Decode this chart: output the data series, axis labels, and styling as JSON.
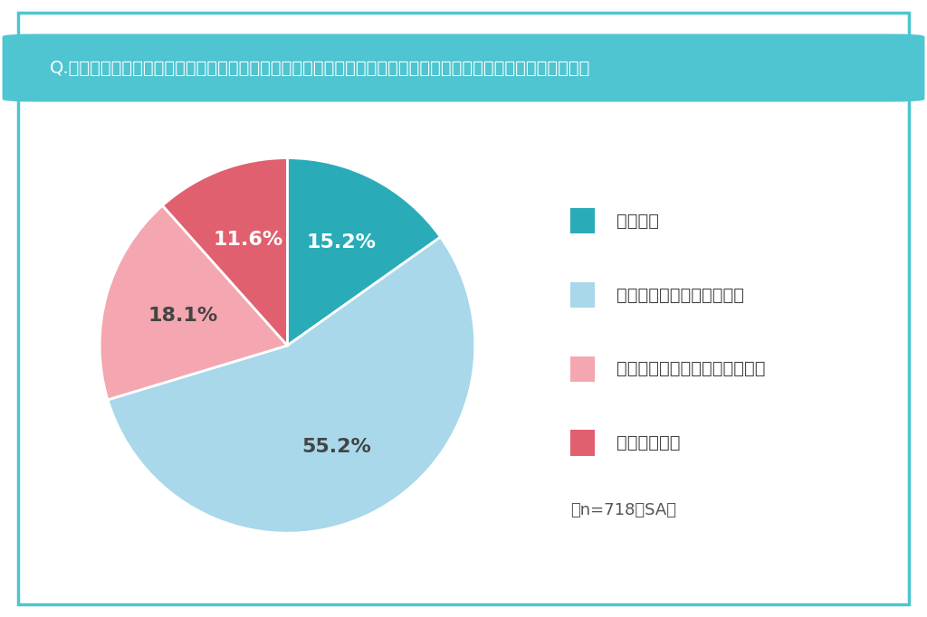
{
  "title": "Q.お勤め先で、課題解決のためのサービス導入や取り組みを実施した場合、積極的に活用／参加したいですか？",
  "slices": [
    15.2,
    55.2,
    18.1,
    11.6
  ],
  "labels": [
    "15.2%",
    "55.2%",
    "18.1%",
    "11.6%"
  ],
  "colors": [
    "#2AACB8",
    "#A8D8EA",
    "#F4A7B0",
    "#E06070"
  ],
  "label_colors": [
    "#FFFFFF",
    "#444444",
    "#444444",
    "#FFFFFF"
  ],
  "legend_labels": [
    "そう思う",
    "どちらかというとそう思う",
    "どちらかというとそう思わない",
    "そう思わない"
  ],
  "note": "（n=718／SA）",
  "bg_color": "#FFFFFF",
  "title_bg_color": "#4EC5D0",
  "title_text_color": "#FFFFFF",
  "border_color": "#4EC5D0",
  "label_fontsize": 16,
  "legend_fontsize": 14,
  "note_fontsize": 13,
  "title_fontsize": 14,
  "startangle": 90
}
